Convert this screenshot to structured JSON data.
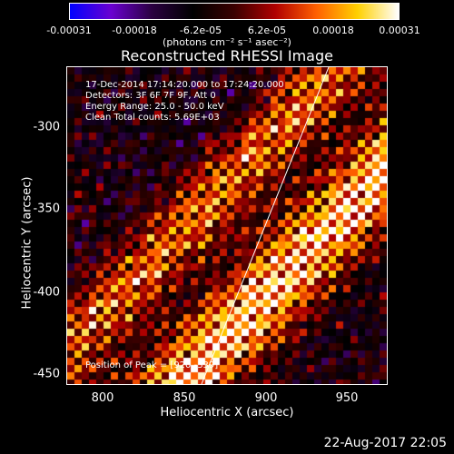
{
  "colorbar": {
    "ticks": [
      "-0.00031",
      "-0.00018",
      "-6.2e-05",
      "6.2e-05",
      "0.00018",
      "0.00031"
    ],
    "units": "(photons cm⁻² s⁻¹ asec⁻²)",
    "colors": [
      "#0000ff",
      "#6a00d0",
      "#2a0040",
      "#000000",
      "#3a0000",
      "#b00000",
      "#ff6000",
      "#ffd000",
      "#ffffff"
    ]
  },
  "image": {
    "title": "Reconstructed RHESSI Image",
    "info_lines": [
      "17-Dec-2014 17:14:20.000 to 17:24:20.000",
      "Detectors: 3F 6F 7F 9F, Att 0",
      "Energy Range: 25.0 - 50.0 keV",
      "Clean    Total counts: 5.69E+03"
    ],
    "peak_label": "Position of Peak = [920,-339]",
    "x_ticks": [
      "800",
      "850",
      "900",
      "950"
    ],
    "y_ticks": [
      "-300",
      "-350",
      "-400",
      "-450"
    ],
    "xlabel": "Heliocentric X (arcsec)",
    "ylabel": "Heliocentric Y (arcsec)",
    "footer_date": "22-Aug-2017 22:05"
  }
}
